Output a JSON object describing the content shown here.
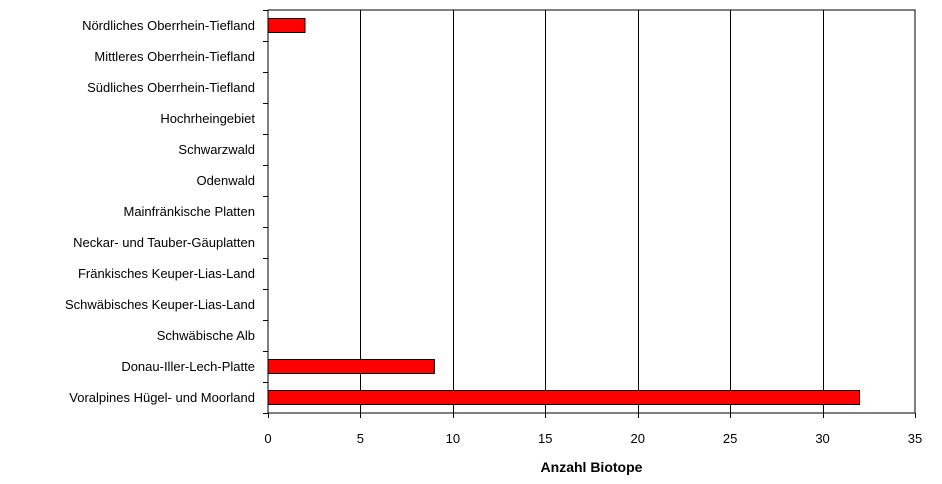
{
  "chart_data": {
    "type": "bar",
    "orientation": "horizontal",
    "categories": [
      "Nördliches Oberrhein-Tiefland",
      "Mittleres Oberrhein-Tiefland",
      "Südliches Oberrhein-Tiefland",
      "Hochrheingebiet",
      "Schwarzwald",
      "Odenwald",
      "Mainfränkische Platten",
      "Neckar- und Tauber-Gäuplatten",
      "Fränkisches Keuper-Lias-Land",
      "Schwäbisches Keuper-Lias-Land",
      "Schwäbische Alb",
      "Donau-Iller-Lech-Platte",
      "Voralpines Hügel- und Moorland"
    ],
    "values": [
      2,
      0,
      0,
      0,
      0,
      0,
      0,
      0,
      0,
      0,
      0,
      9,
      32
    ],
    "xlabel": "Anzahl Biotope",
    "ylabel": "",
    "xlim": [
      0,
      35
    ],
    "xticks": [
      0,
      5,
      10,
      15,
      20,
      25,
      30,
      35
    ],
    "grid": "vertical",
    "legend": "none",
    "colors": {
      "bar_fill": "#ff0000",
      "bar_stroke": "#000000",
      "grid": "#000000",
      "frame": "#000000"
    }
  }
}
